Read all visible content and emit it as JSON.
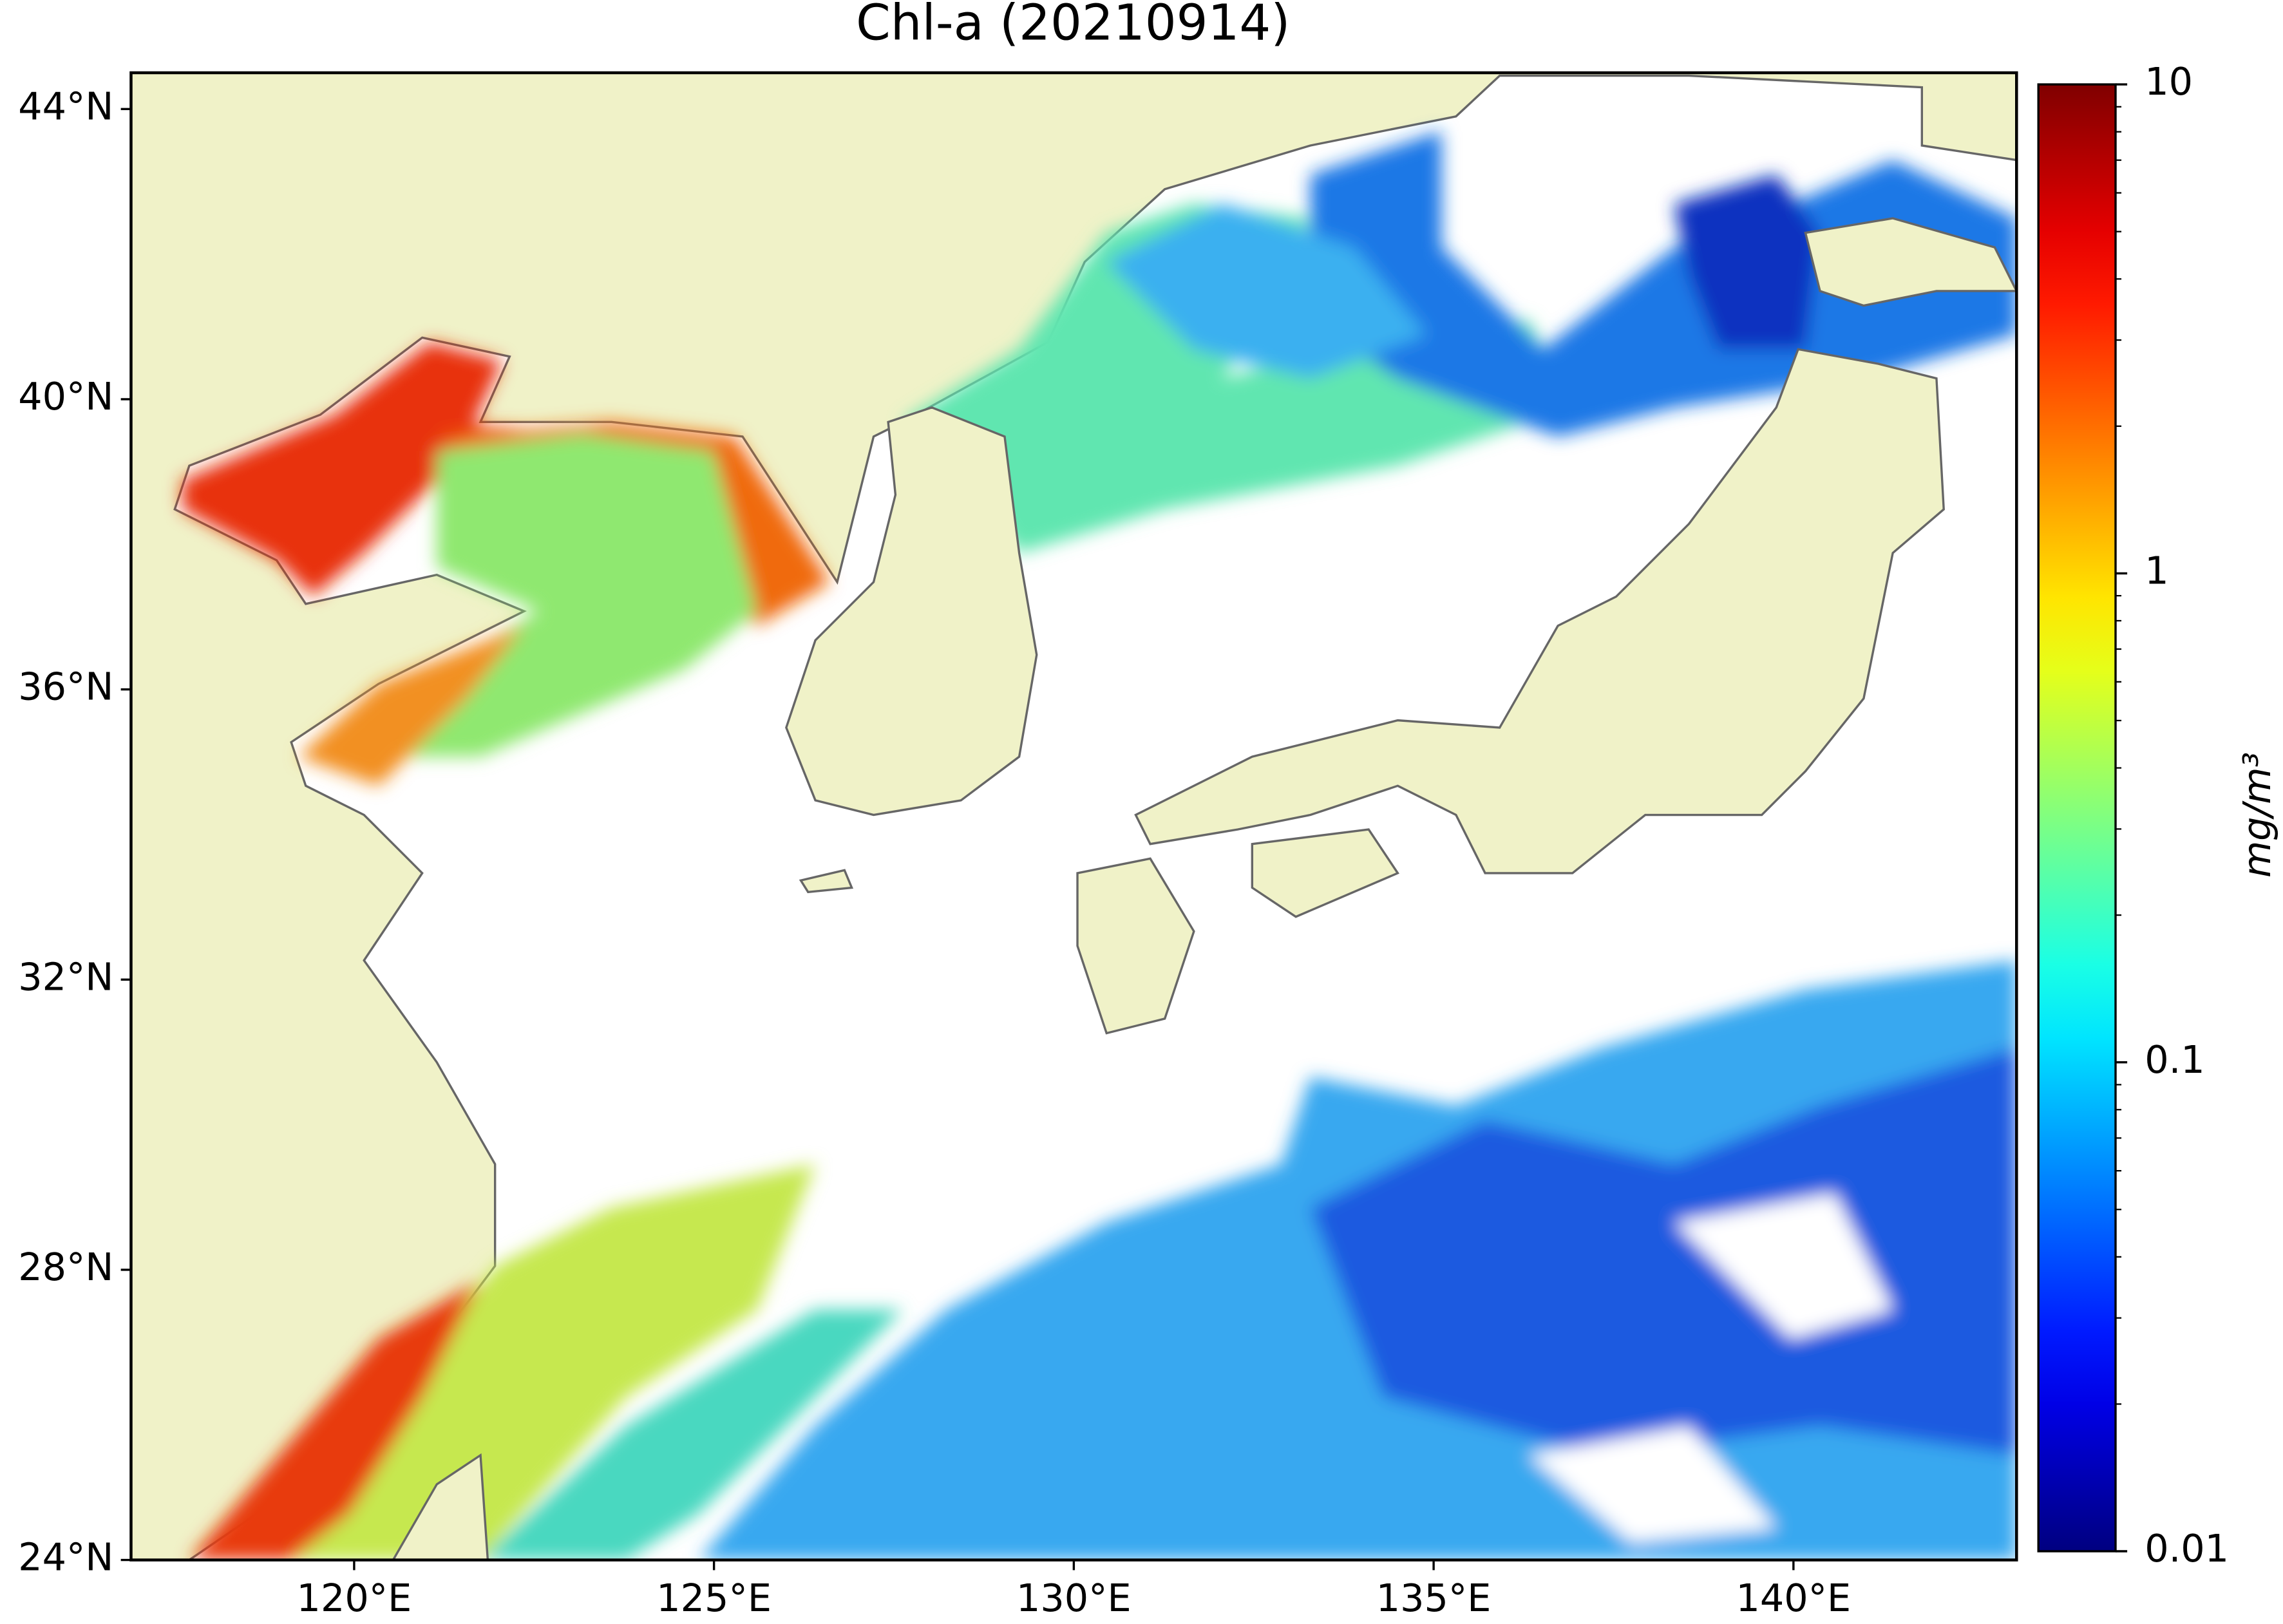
{
  "chart_data": {
    "type": "map",
    "title": "Chl-a (20210914)",
    "xlim": [
      116.9,
      143.1
    ],
    "ylim": [
      24,
      44.5
    ],
    "xticks": [
      {
        "value": 120,
        "label": "120°E"
      },
      {
        "value": 125,
        "label": "125°E"
      },
      {
        "value": 130,
        "label": "130°E"
      },
      {
        "value": 135,
        "label": "135°E"
      },
      {
        "value": 140,
        "label": "140°E"
      }
    ],
    "yticks": [
      {
        "value": 24,
        "label": "24°N"
      },
      {
        "value": 28,
        "label": "28°N"
      },
      {
        "value": 32,
        "label": "32°N"
      },
      {
        "value": 36,
        "label": "36°N"
      },
      {
        "value": 40,
        "label": "40°N"
      },
      {
        "value": 44,
        "label": "44°N"
      }
    ],
    "colorbar": {
      "label": "mg/m³",
      "scale": "log",
      "colormap": "jet",
      "lim": [
        0.01,
        10
      ],
      "ticks": [
        0.01,
        0.1,
        1,
        10
      ]
    }
  }
}
